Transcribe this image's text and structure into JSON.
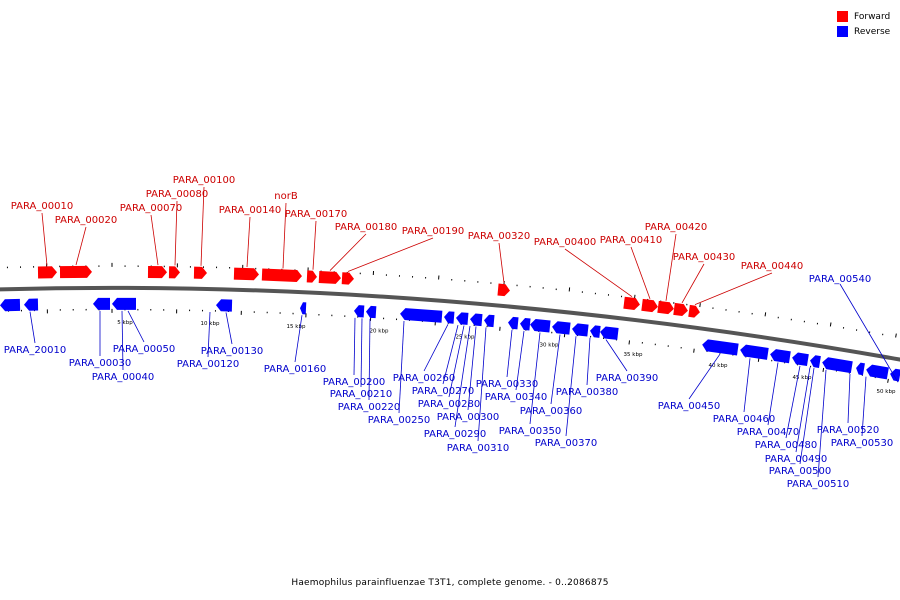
{
  "caption": "Haemophilus parainfluenzae T3T1, complete genome. - 0..2086875",
  "colors": {
    "forward": "#ff0000",
    "reverse": "#0000ff",
    "label_forward": "#cc0000",
    "label_reverse": "#0000cc",
    "backbone": "#555555"
  },
  "legend": [
    {
      "label": "Forward",
      "color": "#ff0000"
    },
    {
      "label": "Reverse",
      "color": "#0000ff"
    }
  ],
  "scale_labels": [
    "5 kbp",
    "10 kbp",
    "15 kbp",
    "20 kbp",
    "25 kbp",
    "30 kbp",
    "35 kbp",
    "40 kbp",
    "45 kbp",
    "50 kbp"
  ],
  "forward_labels": [
    "PARA_00010",
    "PARA_00020",
    "PARA_00070",
    "PARA_00080",
    "PARA_00100",
    "PARA_00140",
    "norB",
    "PARA_00170",
    "PARA_00180",
    "PARA_00190",
    "PARA_00320",
    "PARA_00400",
    "PARA_00410",
    "PARA_00420",
    "PARA_00430",
    "PARA_00440"
  ],
  "reverse_labels": [
    "PARA_20010",
    "PARA_00030",
    "PARA_00040",
    "PARA_00050",
    "PARA_00120",
    "PARA_00130",
    "PARA_00160",
    "PARA_00200",
    "PARA_00210",
    "PARA_00220",
    "PARA_00250",
    "PARA_00260",
    "PARA_00270",
    "PARA_00280",
    "PARA_00290",
    "PARA_00300",
    "PARA_00310",
    "PARA_00330",
    "PARA_00340",
    "PARA_00350",
    "PARA_00360",
    "PARA_00370",
    "PARA_00380",
    "PARA_00390",
    "PARA_00450",
    "PARA_00460",
    "PARA_00470",
    "PARA_00480",
    "PARA_00490",
    "PARA_00500",
    "PARA_00510",
    "PARA_00520",
    "PARA_00530",
    "PARA_00540"
  ]
}
